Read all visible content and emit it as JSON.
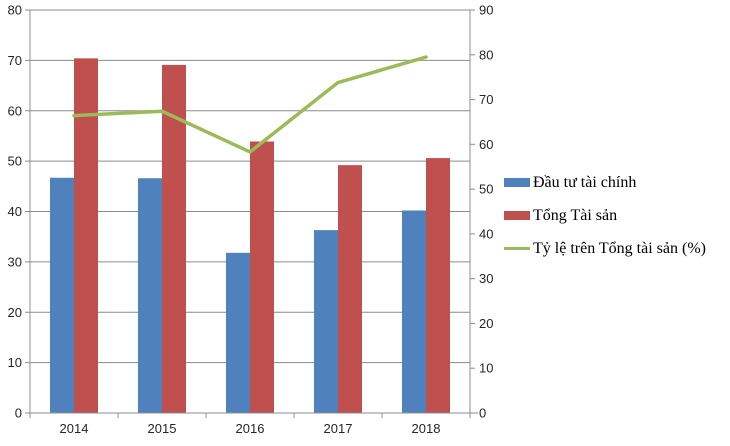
{
  "chart_data": {
    "type": "combo-bar-line",
    "title": "",
    "categories": [
      "2014",
      "2015",
      "2016",
      "2017",
      "2018"
    ],
    "series": [
      {
        "name": "Đầu tư tài chính",
        "type": "bar",
        "axis": "left",
        "color": "#4F81BD",
        "values": [
          46.7,
          46.6,
          31.8,
          36.3,
          40.2
        ]
      },
      {
        "name": "Tổng Tài sản",
        "type": "bar",
        "axis": "left",
        "color": "#C0504D",
        "values": [
          70.4,
          69.1,
          53.9,
          49.2,
          50.6
        ]
      },
      {
        "name": "Tỷ lệ trên Tổng tài sản (%)",
        "type": "line",
        "axis": "right",
        "color": "#9BBB59",
        "values": [
          66.4,
          67.4,
          58.3,
          73.8,
          79.5
        ]
      }
    ],
    "left_axis": {
      "min": 0,
      "max": 80,
      "ticks": [
        "0",
        "10",
        "20",
        "30",
        "40",
        "50",
        "60",
        "70",
        "80"
      ]
    },
    "right_axis": {
      "min": 0,
      "max": 90,
      "ticks": [
        "0",
        "10",
        "20",
        "30",
        "40",
        "50",
        "60",
        "70",
        "80",
        "90"
      ]
    },
    "xlabel": "",
    "ylabel": "",
    "grid": true,
    "legend_position": "right",
    "gridline_color": "#8C8C8C",
    "axis_line_color": "#8C8C8C",
    "tick_label_color": "#262626"
  }
}
